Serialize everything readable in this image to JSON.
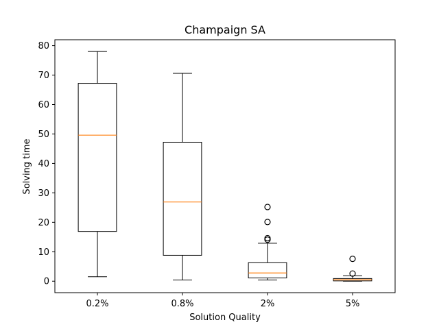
{
  "chart_data": {
    "type": "boxplot",
    "title": "Champaign SA",
    "xlabel": "Solution Quality",
    "ylabel": "Solving time",
    "ylim": [
      -3.9,
      82
    ],
    "yticks": [
      0,
      10,
      20,
      30,
      40,
      50,
      60,
      70,
      80
    ],
    "grid": false,
    "categories": [
      "0.2%",
      "0.8%",
      "2%",
      "5%"
    ],
    "boxes": [
      {
        "whisker_low": 1.5,
        "q1": 16.9,
        "median": 49.6,
        "q3": 67.2,
        "whisker_high": 78.0,
        "outliers": []
      },
      {
        "whisker_low": 0.4,
        "q1": 8.8,
        "median": 26.9,
        "q3": 47.2,
        "whisker_high": 70.6,
        "outliers": []
      },
      {
        "whisker_low": 0.4,
        "q1": 1.1,
        "median": 2.8,
        "q3": 6.3,
        "whisker_high": 12.9,
        "outliers": [
          14.1,
          14.6,
          20.1,
          25.2
        ]
      },
      {
        "whisker_low": 0.0,
        "q1": 0.1,
        "median": 0.5,
        "q3": 0.9,
        "whisker_high": 1.8,
        "outliers": [
          2.6,
          7.6
        ]
      }
    ],
    "colors": {
      "box": "#000000",
      "median": "#ff7f0e",
      "outlier": "#000000"
    }
  }
}
